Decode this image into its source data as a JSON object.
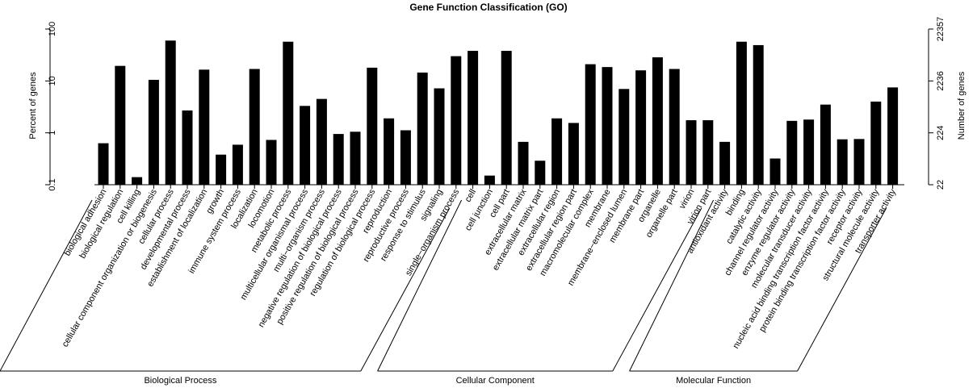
{
  "chart_data": {
    "type": "bar",
    "title": "Gene Function Classification (GO)",
    "ylabel": "Percent of genes",
    "ylabel_right": "Number of genes",
    "yscale": "log",
    "ylim": [
      0.1,
      100
    ],
    "left_ticks": [
      "100",
      "10",
      "1",
      "0.1"
    ],
    "left_tick_values": [
      100,
      10,
      1,
      0.1
    ],
    "right_ticks": [
      "22357",
      "2236",
      "224",
      "22"
    ],
    "categories": [
      "biological adhesion",
      "biological regulation",
      "cell killing",
      "cellular component organization or biogenesis",
      "cellular process",
      "developmental process",
      "establishment of localization",
      "growth",
      "immune system process",
      "localization",
      "locomotion",
      "metabolic process",
      "multicellular organismal process",
      "multi−organism process",
      "negative regulation of biological process",
      "positive regulation of biological process",
      "regulation of biological process",
      "reproduction",
      "reproductive process",
      "response to stimulus",
      "signaling",
      "single−organism process",
      "cell",
      "cell junction",
      "cell part",
      "extracellular matrix",
      "extracellular matrix part",
      "extracellular region",
      "extracellular region part",
      "macromolecular complex",
      "membrane",
      "membrane−enclosed lumen",
      "membrane part",
      "organelle",
      "organelle part",
      "virion",
      "virion part",
      "antioxidant activity",
      "binding",
      "catalytic activity",
      "channel regulator activity",
      "enzyme regulator activity",
      "molecular transducer activity",
      "nucleic acid binding transcription factor activity",
      "protein binding transcription factor activity",
      "receptor activity",
      "structural molecule activity",
      "transporter activity"
    ],
    "values": [
      0.63,
      19.5,
      0.14,
      10.5,
      60,
      2.7,
      16.5,
      0.38,
      0.59,
      17,
      0.73,
      57,
      3.3,
      4.5,
      0.95,
      1.05,
      18,
      1.9,
      1.12,
      14.5,
      7.2,
      30,
      38,
      0.15,
      38,
      0.67,
      0.29,
      1.9,
      1.55,
      21,
      18.5,
      7,
      16,
      28.5,
      17,
      1.75,
      1.75,
      0.67,
      57,
      49,
      0.32,
      1.7,
      1.8,
      3.5,
      0.75,
      0.76,
      4,
      7.5
    ],
    "groups": [
      {
        "name": "Biological Process",
        "start": 0,
        "end": 21
      },
      {
        "name": "Cellular Component",
        "start": 22,
        "end": 36
      },
      {
        "name": "Molecular Function",
        "start": 37,
        "end": 47
      }
    ],
    "legend": "none",
    "grid": false
  }
}
